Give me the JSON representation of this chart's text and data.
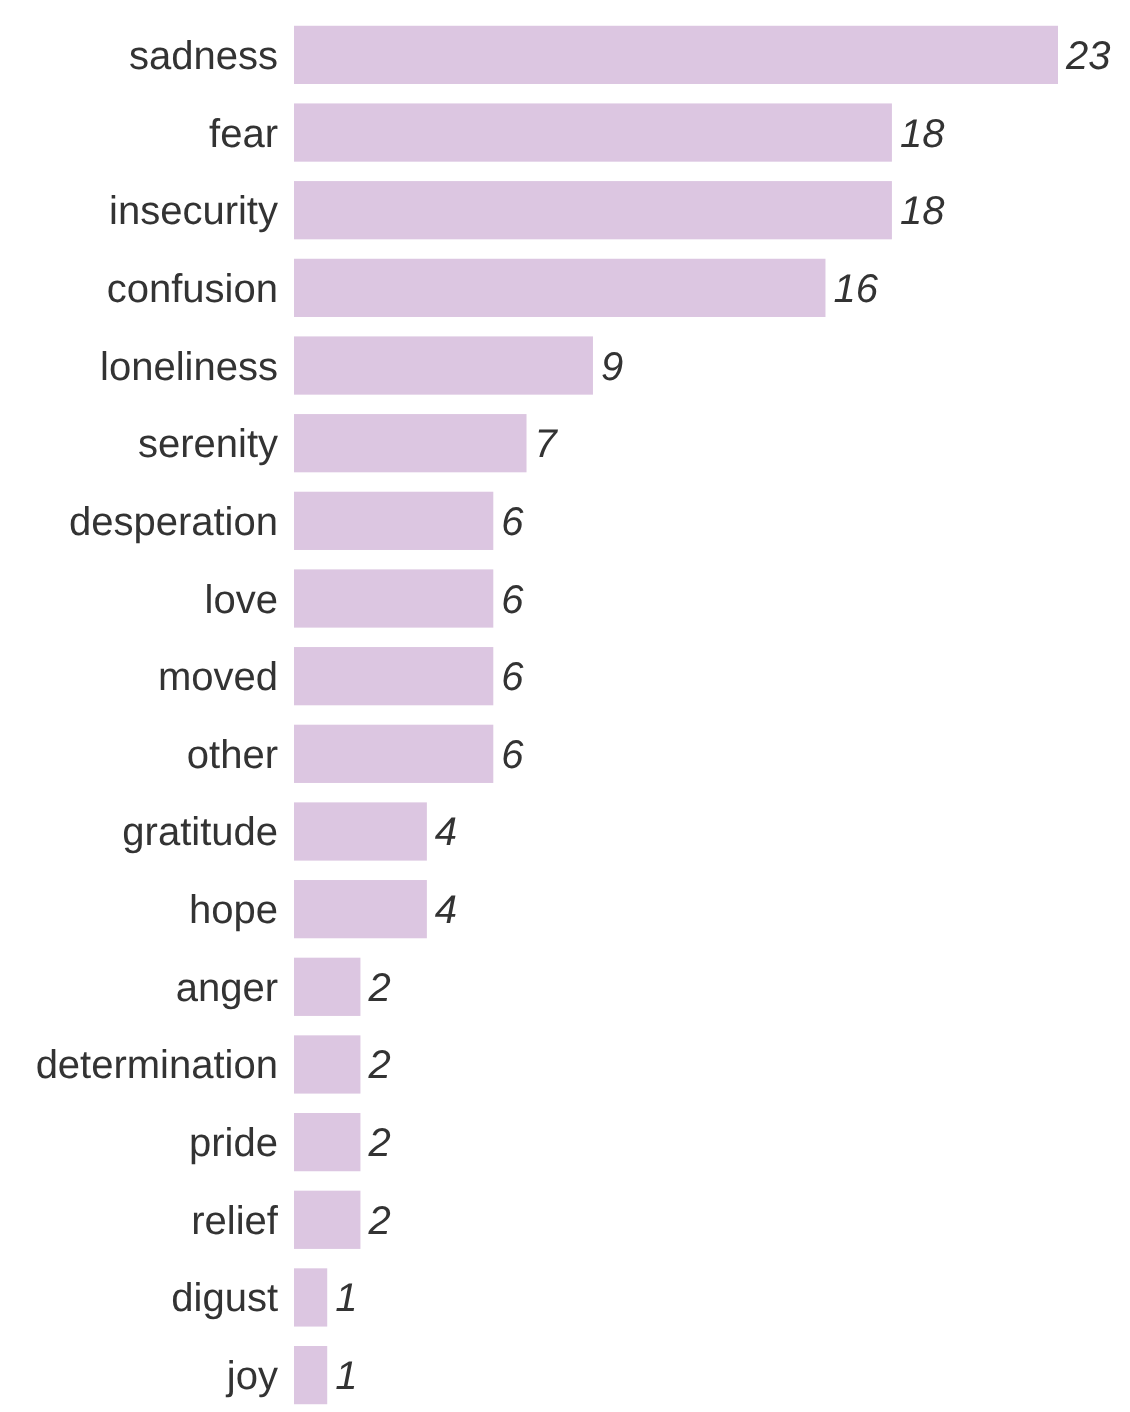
{
  "chart_data": {
    "type": "bar",
    "orientation": "horizontal",
    "categories": [
      "sadness",
      "fear",
      "insecurity",
      "confusion",
      "loneliness",
      "serenity",
      "desperation",
      "love",
      "moved",
      "other",
      "gratitude",
      "hope",
      "anger",
      "determination",
      "pride",
      "relief",
      "digust",
      "joy"
    ],
    "values": [
      23,
      18,
      18,
      16,
      9,
      7,
      6,
      6,
      6,
      6,
      4,
      4,
      2,
      2,
      2,
      2,
      1,
      1
    ],
    "color": "#dcc6e1",
    "data_labels": true
  }
}
